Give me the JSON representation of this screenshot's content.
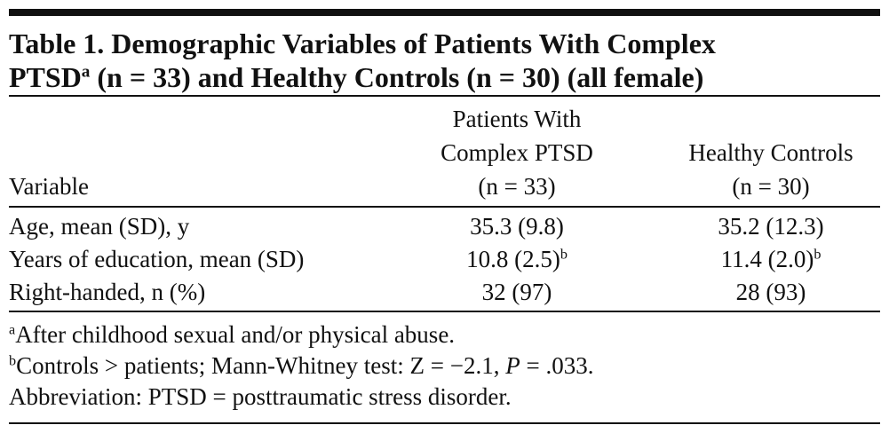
{
  "title": {
    "line_1": "Table 1. Demographic Variables of Patients With Complex",
    "line_2_start": "PTSD",
    "line_2_sup": "a",
    "line_2_end": "(n = 33) and Healthy Controls (n = 30) (all female)"
  },
  "table": {
    "header": [
      [
        "Variable"
      ],
      [
        "Patients With",
        "Complex PTSD",
        "(n = 33)"
      ],
      [
        "Healthy Controls",
        "(n = 30)"
      ]
    ],
    "rows": [
      [
        {
          "text": "Age, mean (SD), y"
        },
        {
          "text": "35.3 (9.8)"
        },
        {
          "text": "35.2 (12.3)"
        }
      ],
      [
        {
          "text": "Years of education, mean (SD)"
        },
        {
          "text": "10.8 (2.5)",
          "sup": "b"
        },
        {
          "text": "11.4 (2.0)",
          "sup": "b"
        }
      ],
      [
        {
          "text": "Right-handed, n (%)"
        },
        {
          "text": "32 (97)"
        },
        {
          "text": "28 (93)"
        }
      ]
    ]
  },
  "footnotes": [
    {
      "mark": "a",
      "parts": [
        "After childhood sexual and/or physical abuse."
      ]
    },
    {
      "mark": "b",
      "parts": [
        "Controls > patients; Mann-Whitney test: Z = −2.1, ",
        "P",
        " = .033."
      ]
    },
    {
      "parts": [
        "Abbreviation: PTSD = posttraumatic stress disorder."
      ]
    }
  ]
}
